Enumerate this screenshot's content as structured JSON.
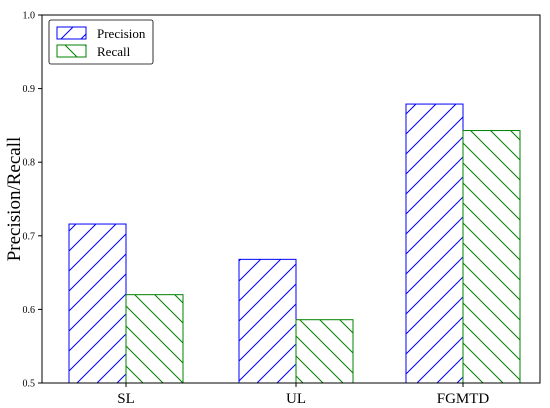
{
  "chart_data": {
    "type": "bar",
    "categories": [
      "SL",
      "UL",
      "FGMTD"
    ],
    "series": [
      {
        "name": "Precision",
        "values": [
          0.716,
          0.668,
          0.879
        ],
        "color": "#0000ff",
        "hatch": "forward-diagonal"
      },
      {
        "name": "Recall",
        "values": [
          0.62,
          0.586,
          0.843
        ],
        "color": "#008000",
        "hatch": "back-diagonal"
      }
    ],
    "ylabel": "Precision/Recall",
    "xlabel": "",
    "ylim": [
      0.5,
      1.0
    ],
    "yticks": [
      "0.5",
      "0.6",
      "0.7",
      "0.8",
      "0.9",
      "1.0"
    ],
    "legend_position": "top-left",
    "grid": false
  }
}
